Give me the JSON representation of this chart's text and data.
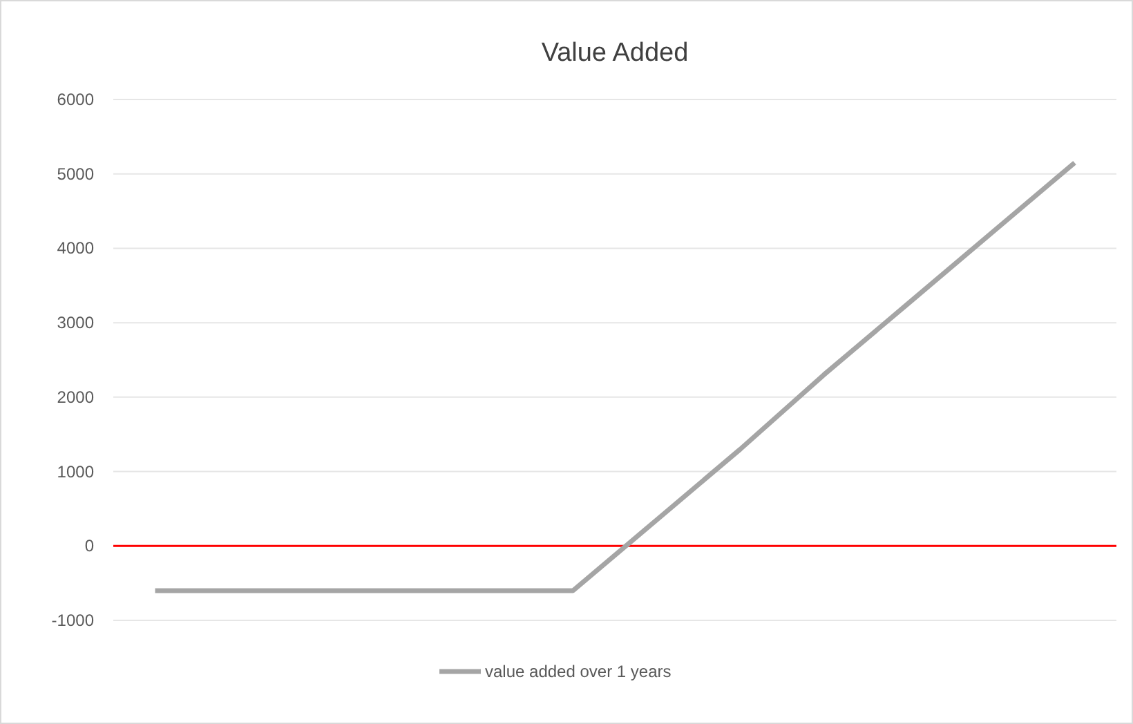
{
  "chart_data": {
    "type": "line",
    "title": "Value Added",
    "categories": [
      null,
      null,
      null,
      null,
      null,
      null,
      null,
      null,
      null,
      null,
      null,
      null
    ],
    "series": [
      {
        "name": "value added over 1 years",
        "color": "#a5a5a5",
        "values": [
          -600,
          -600,
          -600,
          -600,
          -600,
          -600,
          350,
          1300,
          2300,
          3250,
          4200,
          5150
        ]
      }
    ],
    "ylim": [
      -1000,
      6000
    ],
    "yticks": [
      -1000,
      0,
      1000,
      2000,
      3000,
      4000,
      5000,
      6000
    ],
    "grid": "y",
    "legend": "bottom",
    "ref_lines": [
      {
        "axis": "y",
        "value": 0,
        "color": "#ff0000"
      }
    ]
  }
}
